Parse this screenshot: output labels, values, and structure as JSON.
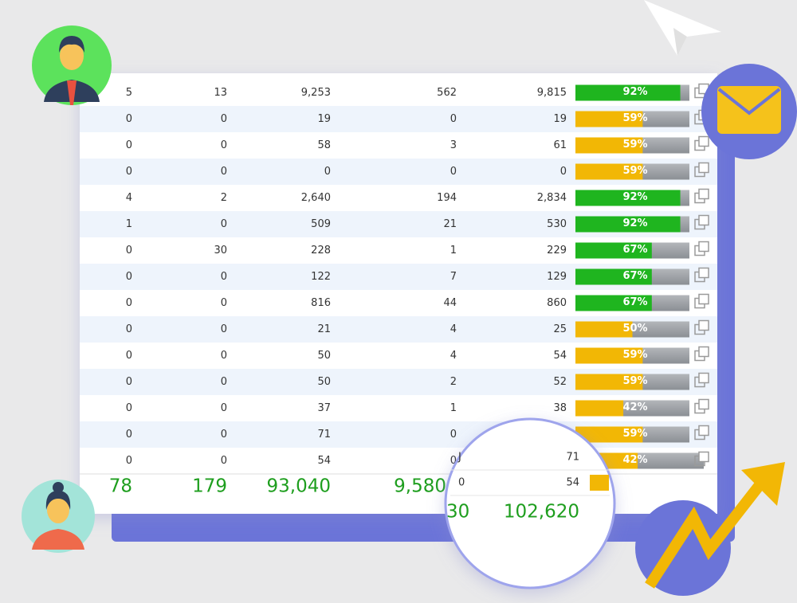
{
  "table": {
    "rows": [
      {
        "cells": [
          "5",
          "13",
          "9,253",
          "562",
          "9,815"
        ],
        "progress": {
          "value": 92,
          "label": "92%"
        },
        "color": "#1fb51f"
      },
      {
        "cells": [
          "0",
          "0",
          "19",
          "0",
          "19"
        ],
        "progress": {
          "value": 59,
          "label": "59%"
        },
        "color": "#f2b705"
      },
      {
        "cells": [
          "0",
          "0",
          "58",
          "3",
          "61"
        ],
        "progress": {
          "value": 59,
          "label": "59%"
        },
        "color": "#f2b705"
      },
      {
        "cells": [
          "0",
          "0",
          "0",
          "0",
          "0"
        ],
        "progress": {
          "value": 59,
          "label": "59%"
        },
        "color": "#f2b705"
      },
      {
        "cells": [
          "4",
          "2",
          "2,640",
          "194",
          "2,834"
        ],
        "progress": {
          "value": 92,
          "label": "92%"
        },
        "color": "#1fb51f"
      },
      {
        "cells": [
          "1",
          "0",
          "509",
          "21",
          "530"
        ],
        "progress": {
          "value": 92,
          "label": "92%"
        },
        "color": "#1fb51f"
      },
      {
        "cells": [
          "0",
          "30",
          "228",
          "1",
          "229"
        ],
        "progress": {
          "value": 67,
          "label": "67%"
        },
        "color": "#1fb51f"
      },
      {
        "cells": [
          "0",
          "0",
          "122",
          "7",
          "129"
        ],
        "progress": {
          "value": 67,
          "label": "67%"
        },
        "color": "#1fb51f"
      },
      {
        "cells": [
          "0",
          "0",
          "816",
          "44",
          "860"
        ],
        "progress": {
          "value": 67,
          "label": "67%"
        },
        "color": "#1fb51f"
      },
      {
        "cells": [
          "0",
          "0",
          "21",
          "4",
          "25"
        ],
        "progress": {
          "value": 50,
          "label": "50%"
        },
        "color": "#f2b705"
      },
      {
        "cells": [
          "0",
          "0",
          "50",
          "4",
          "54"
        ],
        "progress": {
          "value": 59,
          "label": "59%"
        },
        "color": "#f2b705"
      },
      {
        "cells": [
          "0",
          "0",
          "50",
          "2",
          "52"
        ],
        "progress": {
          "value": 59,
          "label": "59%"
        },
        "color": "#f2b705"
      },
      {
        "cells": [
          "0",
          "0",
          "37",
          "1",
          "38"
        ],
        "progress": {
          "value": 42,
          "label": "42%"
        },
        "color": "#f2b705"
      },
      {
        "cells": [
          "0",
          "0",
          "71",
          "0",
          "-"
        ],
        "progress": {
          "value": 59,
          "label": "59%"
        },
        "color": "#f2b705"
      },
      {
        "cells": [
          "0",
          "0",
          "54",
          "0"
        ],
        "progress": {
          "value": 42,
          "label": "42%"
        },
        "color": "#f2b705"
      }
    ],
    "totals": [
      "78",
      "179",
      "93,040",
      "9,580"
    ]
  },
  "magnifier": {
    "rows": [
      [
        "J",
        "71"
      ],
      [
        "0",
        "54"
      ]
    ],
    "totals": [
      "30",
      "102,620"
    ]
  }
}
